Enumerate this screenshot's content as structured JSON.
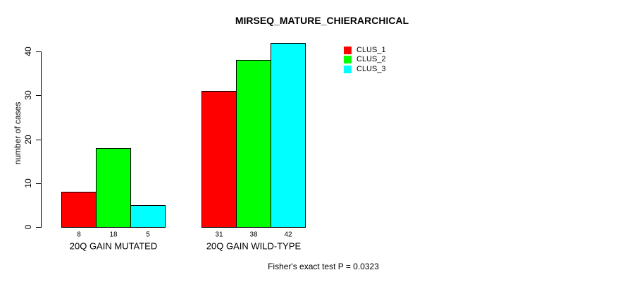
{
  "title": "MIRSEQ_MATURE_CHIERARCHICAL",
  "chart_data": {
    "type": "bar",
    "title": "MIRSEQ_MATURE_CHIERARCHICAL",
    "ylabel": "number of cases",
    "xlabel": "",
    "ylim": [
      0,
      40
    ],
    "yticks": [
      "0",
      "10",
      "20",
      "30",
      "40"
    ],
    "grid": false,
    "legend_position": "top-right",
    "categories": [
      "20Q GAIN MUTATED",
      "20Q GAIN WILD-TYPE"
    ],
    "series": [
      {
        "name": "CLUS_1",
        "color": "#ff0000",
        "values": [
          8,
          31
        ]
      },
      {
        "name": "CLUS_2",
        "color": "#00ff00",
        "values": [
          18,
          38
        ]
      },
      {
        "name": "CLUS_3",
        "color": "#00ffff",
        "values": [
          5,
          42
        ]
      }
    ],
    "bar_value_labels": [
      [
        8,
        18,
        5
      ],
      [
        31,
        38,
        42
      ]
    ],
    "annotation": "Fisher's exact test P = 0.0323"
  },
  "colors": {
    "background": "#ffffff",
    "axis": "#000000",
    "bar_border": "#000000",
    "text": "#000000"
  }
}
